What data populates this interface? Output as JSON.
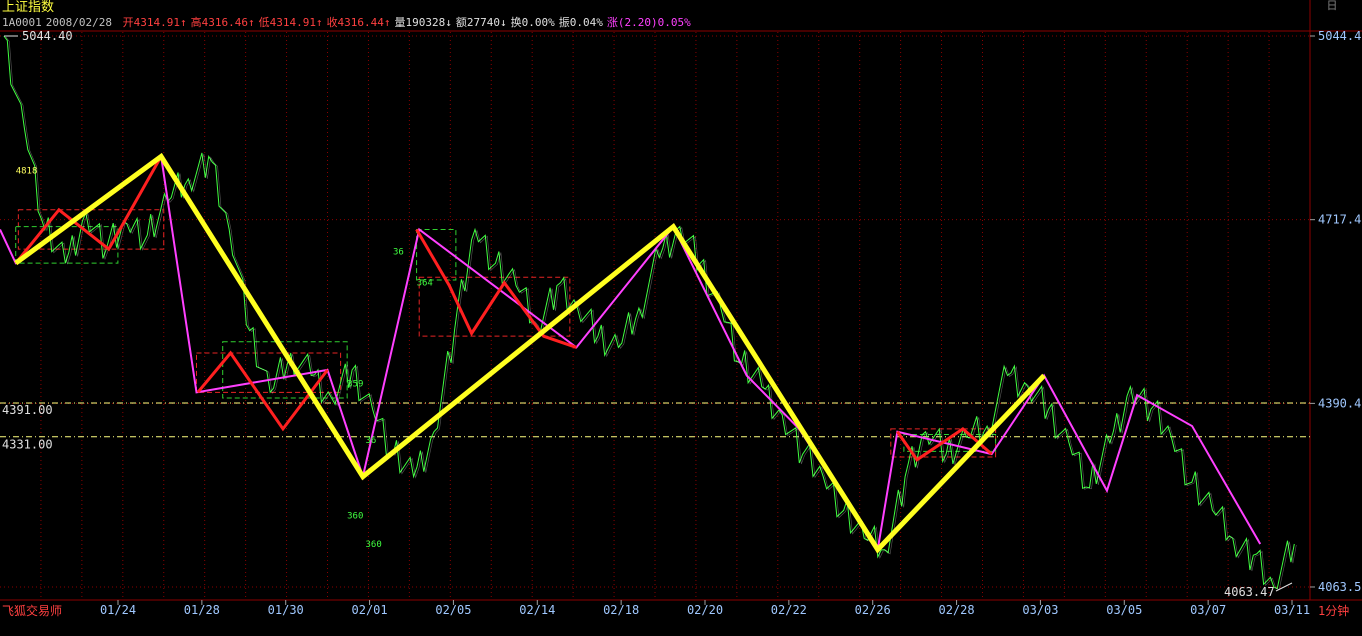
{
  "header": {
    "title": "上证指数",
    "code": "1A0001",
    "date": "2008/02/28",
    "open": "开4314.91↑",
    "high": "高4316.46↑",
    "low": "低4314.91↑",
    "close": "收4316.44↑",
    "volume": "量190328↓",
    "amount": "额27740↓",
    "turnover": "换0.00%",
    "amplitude": "振0.04%",
    "change": "涨(2.20)0.05%"
  },
  "window_button": "日",
  "chart_data": {
    "type": "line",
    "ylim": [
      4063.47,
      5044.4
    ],
    "y_ticks": [
      "5044.4",
      "4717.4",
      "4390.4",
      "4063.5"
    ],
    "x_ticks": [
      "01/24",
      "01/28",
      "01/30",
      "02/01",
      "02/05",
      "02/14",
      "02/18",
      "02/20",
      "02/22",
      "02/26",
      "02/28",
      "03/03",
      "03/05",
      "03/07",
      "03/11"
    ],
    "high_label": "5044.40",
    "low_label": "4063.47",
    "support_lines": [
      {
        "label": "4391.00",
        "value": 4391.0
      },
      {
        "label": "4331.00",
        "value": 4331.0
      }
    ],
    "annotations": [
      "4818",
      "359",
      "364",
      "360",
      "36",
      "36",
      "360"
    ],
    "yellow_trend": [
      {
        "x": 0.012,
        "y": 4640
      },
      {
        "x": 0.123,
        "y": 4830
      },
      {
        "x": 0.277,
        "y": 4260
      },
      {
        "x": 0.514,
        "y": 4705
      },
      {
        "x": 0.67,
        "y": 4130
      },
      {
        "x": 0.797,
        "y": 4440
      }
    ],
    "red_zigzag": [
      [
        {
          "x": 0.012,
          "y": 4640
        },
        {
          "x": 0.045,
          "y": 4735
        },
        {
          "x": 0.083,
          "y": 4665
        },
        {
          "x": 0.123,
          "y": 4830
        }
      ],
      [
        {
          "x": 0.151,
          "y": 4410
        },
        {
          "x": 0.176,
          "y": 4480
        },
        {
          "x": 0.216,
          "y": 4345
        },
        {
          "x": 0.25,
          "y": 4450
        }
      ],
      [
        {
          "x": 0.318,
          "y": 4700
        },
        {
          "x": 0.343,
          "y": 4600
        },
        {
          "x": 0.36,
          "y": 4515
        },
        {
          "x": 0.385,
          "y": 4605
        },
        {
          "x": 0.415,
          "y": 4510
        },
        {
          "x": 0.44,
          "y": 4490
        }
      ],
      [
        {
          "x": 0.685,
          "y": 4340
        },
        {
          "x": 0.7,
          "y": 4290
        },
        {
          "x": 0.735,
          "y": 4345
        },
        {
          "x": 0.757,
          "y": 4300
        }
      ]
    ],
    "magenta_trend": [
      {
        "x": 0.0,
        "y": 4700
      },
      {
        "x": 0.012,
        "y": 4640
      },
      {
        "x": 0.123,
        "y": 4830
      },
      {
        "x": 0.15,
        "y": 4410
      },
      {
        "x": 0.25,
        "y": 4450
      },
      {
        "x": 0.277,
        "y": 4260
      },
      {
        "x": 0.32,
        "y": 4700
      },
      {
        "x": 0.44,
        "y": 4490
      },
      {
        "x": 0.514,
        "y": 4705
      },
      {
        "x": 0.57,
        "y": 4440
      },
      {
        "x": 0.61,
        "y": 4345
      },
      {
        "x": 0.67,
        "y": 4130
      },
      {
        "x": 0.685,
        "y": 4340
      },
      {
        "x": 0.757,
        "y": 4300
      },
      {
        "x": 0.797,
        "y": 4440
      },
      {
        "x": 0.845,
        "y": 4235
      },
      {
        "x": 0.868,
        "y": 4405
      },
      {
        "x": 0.91,
        "y": 4350
      },
      {
        "x": 0.962,
        "y": 4140
      }
    ],
    "price_series": {
      "name": "",
      "values": [
        5044.4,
        4880,
        4700,
        4640,
        4730,
        4665,
        4710,
        4690,
        4750,
        4790,
        4830,
        4700,
        4520,
        4410,
        4480,
        4440,
        4400,
        4450,
        4380,
        4300,
        4260,
        4340,
        4520,
        4700,
        4640,
        4600,
        4530,
        4600,
        4560,
        4510,
        4490,
        4560,
        4650,
        4705,
        4640,
        4560,
        4460,
        4420,
        4370,
        4300,
        4260,
        4200,
        4150,
        4130,
        4260,
        4340,
        4300,
        4330,
        4350,
        4440,
        4420,
        4380,
        4320,
        4240,
        4320,
        4420,
        4380,
        4330,
        4250,
        4200,
        4150,
        4120,
        4063.47,
        4140
      ]
    },
    "colors": {
      "price_line": "#40ff40",
      "yellow_trend": "#ffff20",
      "red_zigzag": "#ff2020",
      "magenta_trend": "#ff40ff",
      "grid": "#8b0000",
      "axis_text": "#a0c8ff"
    }
  },
  "footer": {
    "left_label": "飞狐交易师",
    "period_label": "1分钟"
  }
}
